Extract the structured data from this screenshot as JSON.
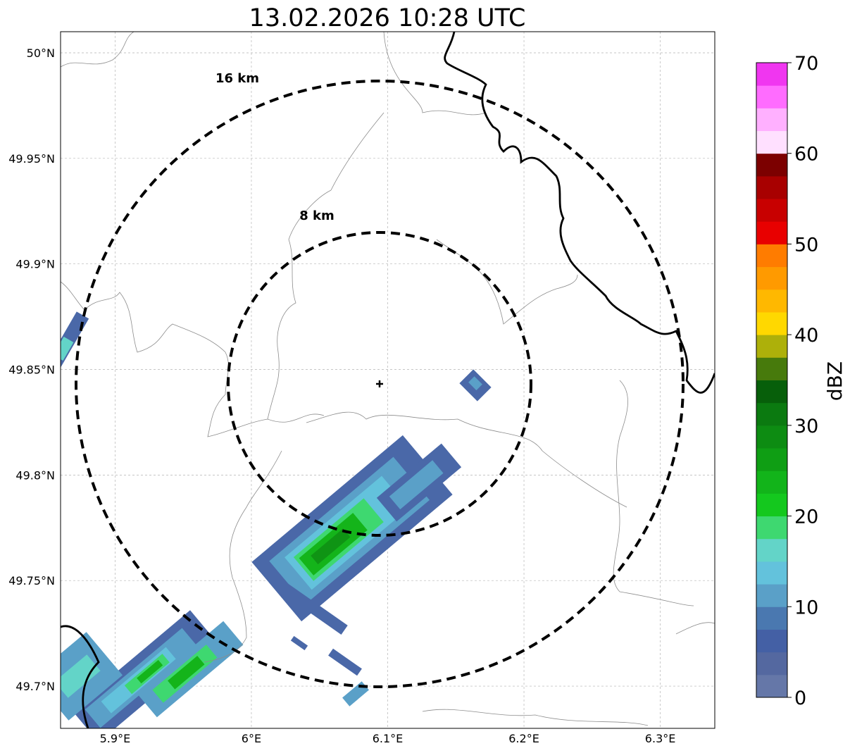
{
  "title": "13.02.2026 10:28 UTC",
  "map": {
    "lon_range": [
      5.86,
      6.34
    ],
    "lat_range": [
      49.68,
      50.01
    ],
    "x_ticks": [
      {
        "value": 5.9,
        "label": "5.9°E"
      },
      {
        "value": 6.0,
        "label": "6°E"
      },
      {
        "value": 6.1,
        "label": "6.1°E"
      },
      {
        "value": 6.2,
        "label": "6.2°E"
      },
      {
        "value": 6.3,
        "label": "6.3°E"
      }
    ],
    "y_ticks": [
      {
        "value": 50.0,
        "label": "50°N"
      },
      {
        "value": 49.95,
        "label": "49.95°N"
      },
      {
        "value": 49.9,
        "label": "49.9°N"
      },
      {
        "value": 49.85,
        "label": "49.85°N"
      },
      {
        "value": 49.8,
        "label": "49.8°N"
      },
      {
        "value": 49.75,
        "label": "49.75°N"
      },
      {
        "value": 49.7,
        "label": "49.7°N"
      }
    ],
    "gridlines": true,
    "radar_site": {
      "lon": 6.094,
      "lat": 49.844
    },
    "range_rings": [
      {
        "label": "8 km",
        "radius_km": 8
      },
      {
        "label": "16 km",
        "radius_km": 16
      }
    ]
  },
  "colorbar": {
    "label": "dBZ",
    "min": 0,
    "max": 70,
    "tick_labels": [
      "0",
      "10",
      "20",
      "30",
      "40",
      "50",
      "60",
      "70"
    ],
    "colors": [
      "#6577a8",
      "#5468a0",
      "#4460a5",
      "#4a78b0",
      "#5aa0c8",
      "#63c2dc",
      "#63d4c8",
      "#3ed870",
      "#14c81e",
      "#12b41a",
      "#0f9e14",
      "#0d8c12",
      "#0b7a10",
      "#075f0a",
      "#477a0c",
      "#adb00a",
      "#ffd800",
      "#ffb800",
      "#ff9a00",
      "#ff7c00",
      "#e80000",
      "#c80000",
      "#a80000",
      "#7c0000",
      "#ffe0ff",
      "#ffb0ff",
      "#ff6cff",
      "#f036f0"
    ]
  },
  "echo_colors": {
    "weak": "#4a68a8",
    "mid": "#5aa0c8",
    "light": "#63c2dc",
    "teal": "#63d4c8",
    "green": "#3ed870",
    "strong": "#14b41a",
    "dark": "#0f9414"
  },
  "legend_colors": {
    "boundary": "#000000",
    "minor_boundary": "#8c8c8c",
    "grid": "#b4b4b4"
  }
}
